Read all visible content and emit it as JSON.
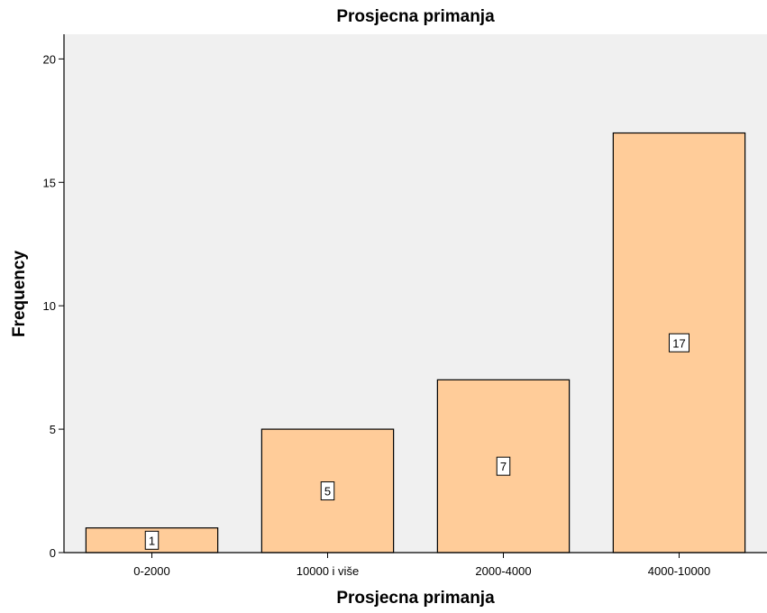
{
  "chart_data": {
    "type": "bar",
    "title": "Prosjecna primanja",
    "xlabel": "Prosjecna primanja",
    "ylabel": "Frequency",
    "categories": [
      "0-2000",
      "10000 i više",
      "2000-4000",
      "4000-10000"
    ],
    "values": [
      1,
      5,
      7,
      17
    ],
    "ylim": [
      0,
      21
    ],
    "yticks": [
      0,
      5,
      10,
      15,
      20
    ],
    "grid": false,
    "data_labels": true,
    "bar_color": "#FFCC99",
    "plot_background": "#F0F0F0"
  }
}
